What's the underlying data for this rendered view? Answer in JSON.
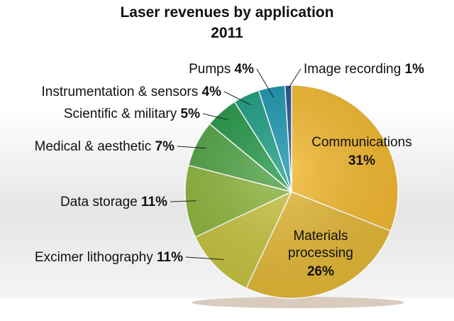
{
  "chart_data": {
    "type": "pie",
    "title": "Laser revenues by application",
    "subtitle": "2011",
    "slices": [
      {
        "label": "Communications",
        "value": 31,
        "display": "31%",
        "color": "#f2b72c"
      },
      {
        "label": "Materials processing",
        "label_lines": [
          "Materials",
          "processing"
        ],
        "value": 26,
        "display": "26%",
        "color": "#e3b734"
      },
      {
        "label": "Excimer lithography",
        "value": 11,
        "display": "11%",
        "color": "#c4c23d"
      },
      {
        "label": "Data storage",
        "value": 11,
        "display": "11%",
        "color": "#8bb43a"
      },
      {
        "label": "Medical & aesthetic",
        "value": 7,
        "display": "7%",
        "color": "#4ea243"
      },
      {
        "label": "Scientific & military",
        "value": 5,
        "display": "5%",
        "color": "#1f9443"
      },
      {
        "label": "Instrumentation & sensors",
        "value": 4,
        "display": "4%",
        "color": "#149a7e"
      },
      {
        "label": "Pumps",
        "value": 4,
        "display": "4%",
        "color": "#1592ad"
      },
      {
        "label": "Image recording",
        "value": 1,
        "display": "1%",
        "color": "#1b4f8c"
      }
    ]
  }
}
